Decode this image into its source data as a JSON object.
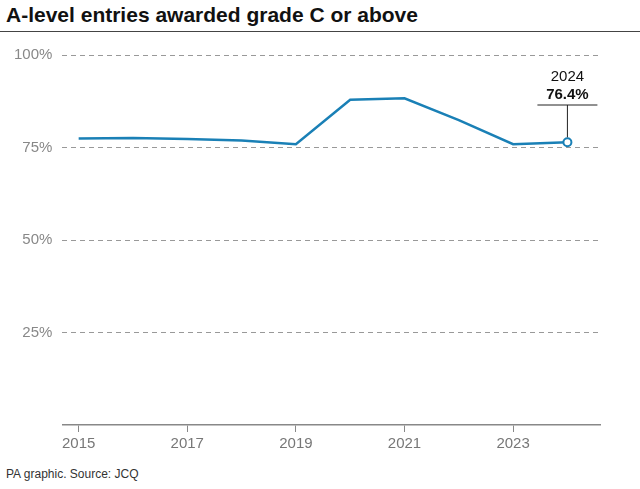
{
  "chart_data": {
    "type": "line",
    "title": "A-level entries awarded grade C or above",
    "source": "PA graphic. Source: JCQ",
    "x": [
      2015,
      2016,
      2017,
      2018,
      2019,
      2020,
      2021,
      2022,
      2023,
      2024
    ],
    "values": [
      77.4,
      77.6,
      77.3,
      76.9,
      75.9,
      87.9,
      88.3,
      82.4,
      75.9,
      76.4
    ],
    "color": "#1a80b6",
    "marker": "last",
    "xlim": [
      2014.7,
      2024.6
    ],
    "xticks": [
      2015,
      2017,
      2019,
      2021,
      2023
    ],
    "ylim": [
      0,
      100
    ],
    "yticks": [
      {
        "value": 25,
        "label": "25%"
      },
      {
        "value": 50,
        "label": "50%"
      },
      {
        "value": 75,
        "label": "75%"
      },
      {
        "value": 100,
        "label": "100%"
      }
    ],
    "grid": true,
    "annotations": [
      {
        "x": 2024,
        "y": 76.4,
        "text": [
          "2024",
          "76.4%"
        ]
      }
    ]
  }
}
